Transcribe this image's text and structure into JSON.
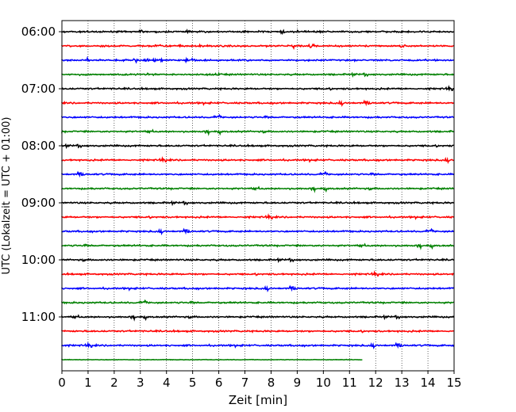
{
  "chart_data": {
    "type": "line",
    "title": "",
    "xlabel": "Zeit  [min]",
    "ylabel": "UTC (Lokalzeit = UTC + 01:00)",
    "xlim": [
      0,
      15
    ],
    "x_ticks": [
      0,
      1,
      2,
      3,
      4,
      5,
      6,
      7,
      8,
      9,
      10,
      11,
      12,
      13,
      14,
      15
    ],
    "y_tick_labels": [
      "06:00",
      "07:00",
      "08:00",
      "09:00",
      "10:00",
      "11:00"
    ],
    "grid": "vertical-dotted",
    "legend": "none",
    "trace_colors": [
      "#000000",
      "#ff0000",
      "#0000ff",
      "#008000"
    ],
    "traces": [
      {
        "start": "06:00",
        "end_min": 15
      },
      {
        "start": "06:15",
        "end_min": 15
      },
      {
        "start": "06:30",
        "end_min": 15
      },
      {
        "start": "06:45",
        "end_min": 15
      },
      {
        "start": "07:00",
        "end_min": 15
      },
      {
        "start": "07:15",
        "end_min": 15
      },
      {
        "start": "07:30",
        "end_min": 15
      },
      {
        "start": "07:45",
        "end_min": 15
      },
      {
        "start": "08:00",
        "end_min": 15
      },
      {
        "start": "08:15",
        "end_min": 15
      },
      {
        "start": "08:30",
        "end_min": 15
      },
      {
        "start": "08:45",
        "end_min": 15
      },
      {
        "start": "09:00",
        "end_min": 15
      },
      {
        "start": "09:15",
        "end_min": 15
      },
      {
        "start": "09:30",
        "end_min": 15
      },
      {
        "start": "09:45",
        "end_min": 15
      },
      {
        "start": "10:00",
        "end_min": 15
      },
      {
        "start": "10:15",
        "end_min": 15
      },
      {
        "start": "10:30",
        "end_min": 15
      },
      {
        "start": "10:45",
        "end_min": 15
      },
      {
        "start": "11:00",
        "end_min": 15
      },
      {
        "start": "11:15",
        "end_min": 15
      },
      {
        "start": "11:30",
        "end_min": 15
      },
      {
        "start": "11:45",
        "end_min": 11.5
      }
    ]
  }
}
